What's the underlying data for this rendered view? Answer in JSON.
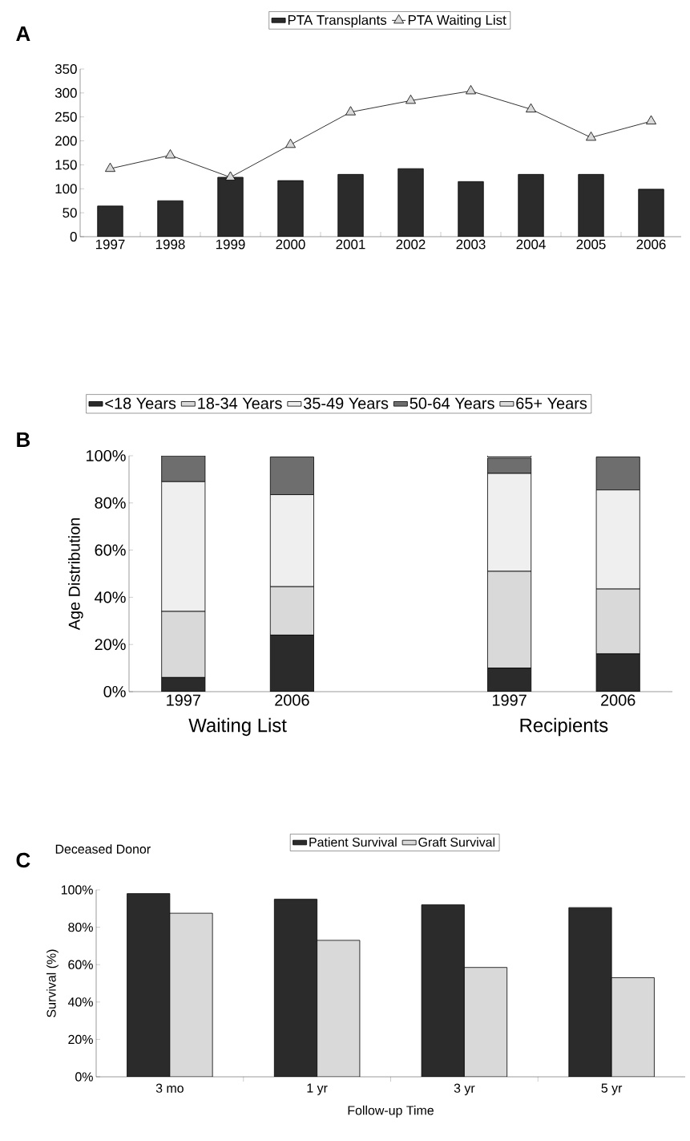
{
  "chart_data": [
    {
      "type": "bar",
      "title": "A",
      "categories": [
        "1997",
        "1998",
        "1999",
        "2000",
        "2001",
        "2002",
        "2003",
        "2004",
        "2005",
        "2006"
      ],
      "series": [
        {
          "name": "PTA Transplants",
          "color": "#2b2b2b",
          "values": [
            64,
            75,
            124,
            117,
            130,
            142,
            115,
            130,
            130,
            99
          ]
        },
        {
          "name": "PTA Waiting List",
          "type": "line",
          "color": "#d9d9d9",
          "values": [
            142,
            170,
            124,
            192,
            260,
            284,
            304,
            266,
            207,
            241
          ]
        }
      ],
      "ylim": [
        0,
        350
      ],
      "yticks": [
        0,
        50,
        100,
        150,
        200,
        250,
        300,
        350
      ],
      "grid": false,
      "legend": "top",
      "marker": "triangle",
      "line_style": "solid"
    },
    {
      "type": "bar",
      "title": "B",
      "stacked": true,
      "ylabel": "Age Distribution",
      "categories": [
        "1997",
        "2006",
        null,
        "1997",
        "2006"
      ],
      "series": [
        {
          "name": "<18 Years",
          "color": "#2b2b2b",
          "values": [
            6,
            24,
            null,
            10,
            16
          ]
        },
        {
          "name": "18-34 Years",
          "color": "#d9d9d9",
          "values": [
            28,
            20.5,
            null,
            41,
            27.5
          ]
        },
        {
          "name": "35-49 Years",
          "color": "#efefef",
          "values": [
            55,
            39,
            null,
            41.5,
            42
          ]
        },
        {
          "name": "50-64 Years",
          "color": "#6e6e6e",
          "values": [
            11,
            16,
            null,
            6.5,
            14
          ]
        },
        {
          "name": "65+ Years",
          "color": "#dcdcdc",
          "values": [
            0,
            null,
            null,
            1,
            null
          ]
        }
      ],
      "ylim": [
        0,
        100
      ],
      "yticks": [
        {
          "value": 0,
          "label": "0%"
        },
        {
          "value": 20,
          "label": "20%"
        },
        {
          "value": 40,
          "label": "40%"
        },
        {
          "value": 60,
          "label": "60%"
        },
        {
          "value": 80,
          "label": "80%"
        },
        {
          "value": 100,
          "label": "100%"
        }
      ],
      "annotations": [
        "Waiting List",
        "Recipients"
      ],
      "grid": false,
      "legend": "top"
    },
    {
      "type": "bar",
      "title": "C",
      "subtitle": "Deceased Donor",
      "xlabel": "Follow-up Time",
      "ylabel": "Survival (%)",
      "categories": [
        "3 mo",
        "1 yr",
        "3 yr",
        "5 yr"
      ],
      "series": [
        {
          "name": "Patient Survival",
          "color": "#2b2b2b",
          "values": [
            98,
            95,
            92,
            90.5
          ]
        },
        {
          "name": "Graft Survival",
          "color": "#d9d9d9",
          "values": [
            87.5,
            73,
            58.5,
            53
          ]
        }
      ],
      "ylim": [
        0,
        100
      ],
      "yticks": [
        {
          "value": 0,
          "label": "0%"
        },
        {
          "value": 20,
          "label": "20%"
        },
        {
          "value": 40,
          "label": "40%"
        },
        {
          "value": 60,
          "label": "60%"
        },
        {
          "value": 80,
          "label": "80%"
        },
        {
          "value": 100,
          "label": "100%"
        }
      ],
      "grid": false,
      "legend": "top"
    }
  ]
}
